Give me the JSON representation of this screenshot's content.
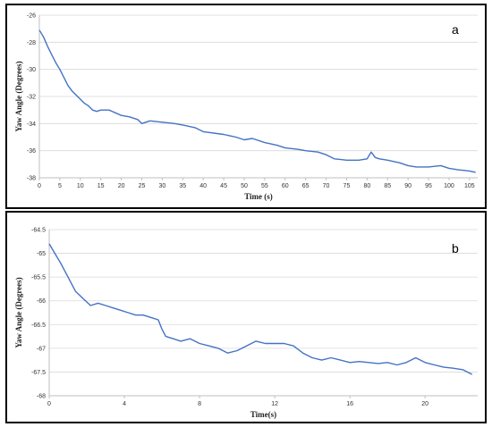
{
  "chart_data": [
    {
      "type": "line",
      "panel_label": "a",
      "xlabel": "Time (s)",
      "ylabel": "Yaw Angle (Degrees)",
      "xlim": [
        0,
        107
      ],
      "ylim": [
        -38,
        -26
      ],
      "xticks": [
        0,
        5,
        10,
        15,
        20,
        25,
        30,
        35,
        40,
        45,
        50,
        55,
        60,
        65,
        70,
        75,
        80,
        85,
        90,
        95,
        100,
        105
      ],
      "yticks": [
        -26,
        -28,
        -30,
        -32,
        -34,
        -36,
        -38
      ],
      "grid": true,
      "series": [
        {
          "color": "#4472c4",
          "x": [
            0,
            1,
            2,
            3,
            4,
            5,
            6,
            7,
            8,
            9,
            10,
            11,
            12,
            13,
            14,
            15,
            17,
            20,
            22,
            24,
            25,
            27,
            30,
            33,
            35,
            38,
            40,
            45,
            48,
            50,
            52,
            55,
            58,
            60,
            63,
            65,
            68,
            70,
            72,
            75,
            78,
            80,
            81,
            82,
            83,
            85,
            88,
            90,
            92,
            95,
            98,
            100,
            102,
            105,
            106.5
          ],
          "y": [
            -27.1,
            -27.6,
            -28.3,
            -28.9,
            -29.5,
            -30.0,
            -30.6,
            -31.2,
            -31.6,
            -31.9,
            -32.2,
            -32.5,
            -32.7,
            -33.0,
            -33.1,
            -33.0,
            -33.0,
            -33.4,
            -33.5,
            -33.7,
            -34.0,
            -33.8,
            -33.9,
            -34.0,
            -34.1,
            -34.3,
            -34.6,
            -34.8,
            -35.0,
            -35.2,
            -35.1,
            -35.4,
            -35.6,
            -35.8,
            -35.9,
            -36.0,
            -36.1,
            -36.3,
            -36.6,
            -36.7,
            -36.7,
            -36.6,
            -36.1,
            -36.5,
            -36.6,
            -36.7,
            -36.9,
            -37.1,
            -37.2,
            -37.2,
            -37.1,
            -37.3,
            -37.4,
            -37.5,
            -37.6
          ]
        }
      ]
    },
    {
      "type": "line",
      "panel_label": "b",
      "xlabel": "Time(s)",
      "ylabel": "Yaw Angle (Degrees)",
      "xlim": [
        0,
        22.8
      ],
      "ylim": [
        -68,
        -64.5
      ],
      "xticks": [
        0,
        4,
        8,
        12,
        16,
        20
      ],
      "yticks": [
        -64.5,
        -65,
        -65.5,
        -66,
        -66.5,
        -67,
        -67.5,
        -68
      ],
      "grid": true,
      "series": [
        {
          "color": "#4472c4",
          "x": [
            0,
            0.3,
            0.6,
            1.0,
            1.4,
            1.8,
            2.2,
            2.6,
            3.0,
            3.4,
            3.8,
            4.2,
            4.6,
            5.0,
            5.4,
            5.8,
            6.0,
            6.2,
            6.6,
            7.0,
            7.5,
            8.0,
            8.5,
            9.0,
            9.5,
            10.0,
            10.5,
            11.0,
            11.5,
            12.0,
            12.5,
            13.0,
            13.5,
            14.0,
            14.5,
            15.0,
            15.5,
            16.0,
            16.5,
            17.0,
            17.5,
            18.0,
            18.5,
            19.0,
            19.5,
            20.0,
            20.5,
            21.0,
            21.5,
            22.0,
            22.5
          ],
          "y": [
            -64.8,
            -65.0,
            -65.2,
            -65.5,
            -65.8,
            -65.95,
            -66.1,
            -66.05,
            -66.1,
            -66.15,
            -66.2,
            -66.25,
            -66.3,
            -66.3,
            -66.35,
            -66.4,
            -66.6,
            -66.75,
            -66.8,
            -66.85,
            -66.8,
            -66.9,
            -66.95,
            -67.0,
            -67.1,
            -67.05,
            -66.95,
            -66.85,
            -66.9,
            -66.9,
            -66.9,
            -66.95,
            -67.1,
            -67.2,
            -67.25,
            -67.2,
            -67.25,
            -67.3,
            -67.28,
            -67.3,
            -67.32,
            -67.3,
            -67.35,
            -67.3,
            -67.2,
            -67.3,
            -67.35,
            -67.4,
            -67.42,
            -67.45,
            -67.55
          ]
        }
      ]
    }
  ]
}
